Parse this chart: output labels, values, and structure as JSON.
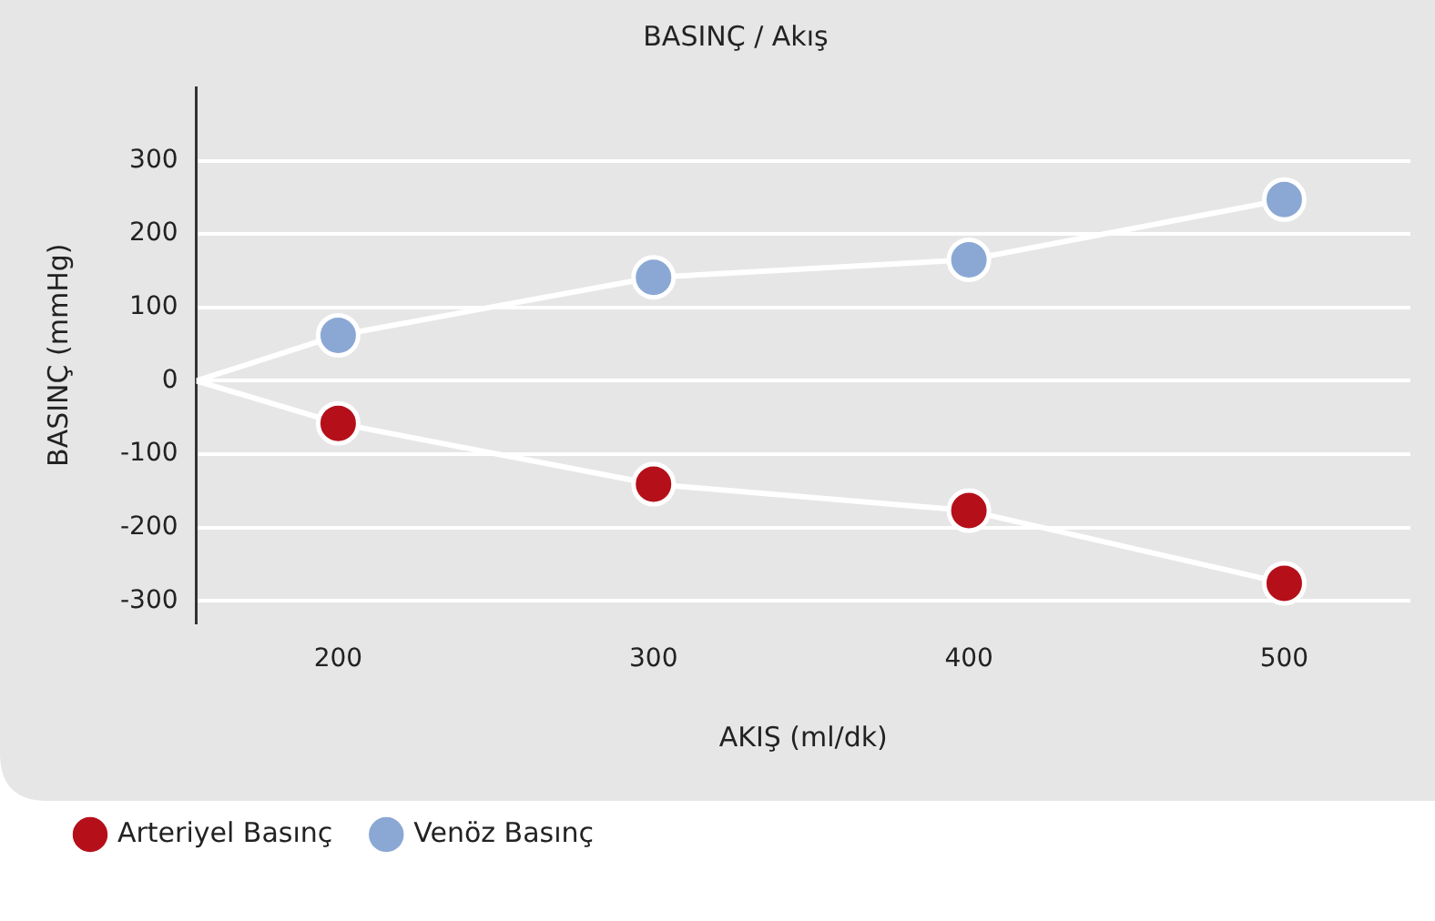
{
  "chart_data": {
    "type": "line",
    "title": "BASINÇ / Akış",
    "xlabel": "AKIŞ (ml/dk)",
    "ylabel": "BASINÇ (mmHg)",
    "xlim": [
      155,
      540
    ],
    "xticks": [
      200,
      300,
      400,
      500
    ],
    "ylim": [
      -330,
      400
    ],
    "yticks": [
      -300,
      -200,
      -100,
      0,
      100,
      200,
      300
    ],
    "grid": "y",
    "legend": "bottom left",
    "marker": "circle",
    "line_style": "solid",
    "series": [
      {
        "name": "Arteriyel Basınç",
        "color": "#b5101a",
        "x": [
          155,
          200,
          300,
          400,
          500
        ],
        "values": [
          0,
          -58,
          -141,
          -177,
          -276
        ]
      },
      {
        "name": "Venöz Basınç",
        "color": "#8ba8d4",
        "x": [
          155,
          200,
          300,
          400,
          500
        ],
        "values": [
          0,
          62,
          141,
          165,
          247
        ]
      }
    ]
  }
}
